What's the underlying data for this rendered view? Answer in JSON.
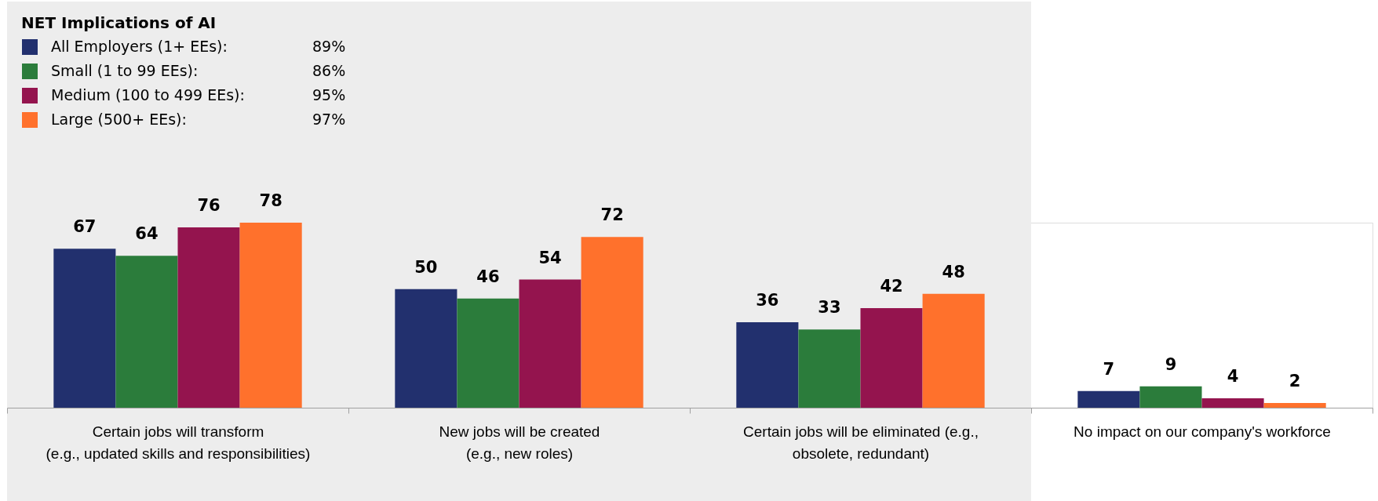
{
  "chart_data": {
    "type": "bar",
    "categories": [
      "Certain jobs will transform\n(e.g., updated skills and responsibilities)",
      "New jobs will be created\n(e.g., new roles)",
      "Certain jobs will be eliminated (e.g.,\nobsolete, redundant)",
      "No impact on our company's workforce"
    ],
    "series": [
      {
        "name": "All Employers (1+ EEs):",
        "color": "#22306e",
        "values": [
          67,
          50,
          36,
          7
        ]
      },
      {
        "name": "Small (1 to 99 EEs):",
        "color": "#2b7c3b",
        "values": [
          64,
          46,
          33,
          9
        ]
      },
      {
        "name": "Medium (100 to 499 EEs):",
        "color": "#94144e",
        "values": [
          76,
          54,
          42,
          4
        ]
      },
      {
        "name": "Large (500+ EEs):",
        "color": "#ff712c",
        "values": [
          78,
          72,
          48,
          2
        ]
      }
    ],
    "legend_title": "NET Implications of AI",
    "legend": "top left",
    "data_labels": true,
    "annotations": [
      "89%",
      "86%",
      "95%",
      "97%"
    ],
    "bands": [
      {
        "axis": "x",
        "from": "Certain jobs will transform\n(e.g., updated skills and responsibilities)",
        "to": "Certain jobs will be eliminated (e.g.,\nobsolete, redundant)",
        "color": "#ededed"
      }
    ]
  }
}
